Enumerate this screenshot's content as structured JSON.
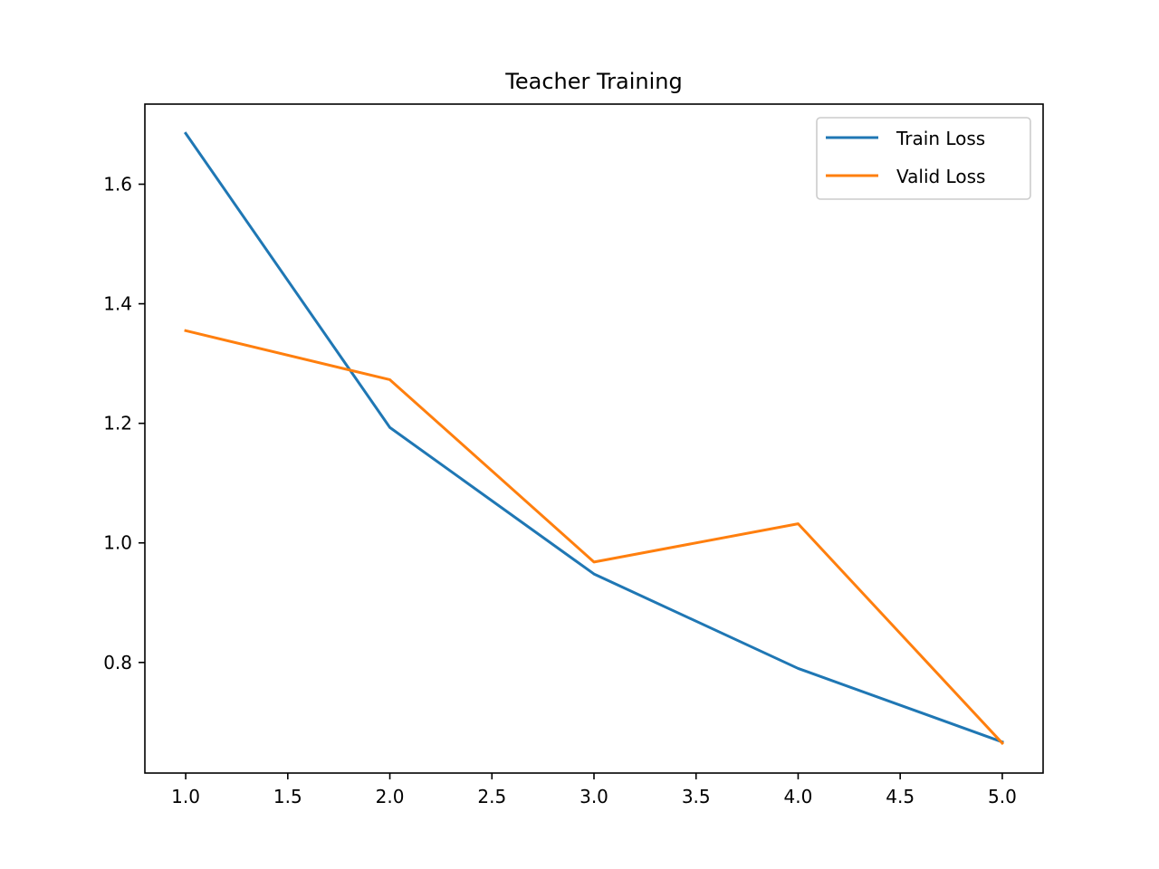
{
  "chart_data": {
    "type": "line",
    "title": "Teacher Training",
    "xlabel": "",
    "ylabel": "",
    "x": [
      1,
      2,
      3,
      4,
      5
    ],
    "series": [
      {
        "name": "Train Loss",
        "color": "#1f77b4",
        "values": [
          1.685,
          1.193,
          0.948,
          0.79,
          0.667
        ]
      },
      {
        "name": "Valid Loss",
        "color": "#ff7f0e",
        "values": [
          1.355,
          1.273,
          0.968,
          1.032,
          0.665
        ]
      }
    ],
    "xlim": [
      0.8,
      5.2
    ],
    "ylim": [
      0.615,
      1.734
    ],
    "xticks": [
      1.0,
      1.5,
      2.0,
      2.5,
      3.0,
      3.5,
      4.0,
      4.5,
      5.0
    ],
    "xtick_labels": [
      "1.0",
      "1.5",
      "2.0",
      "2.5",
      "3.0",
      "3.5",
      "4.0",
      "4.5",
      "5.0"
    ],
    "yticks": [
      0.8,
      1.0,
      1.2,
      1.4,
      1.6
    ],
    "ytick_labels": [
      "0.8",
      "1.0",
      "1.2",
      "1.4",
      "1.6"
    ],
    "grid": false,
    "legend_position": "upper-right"
  }
}
